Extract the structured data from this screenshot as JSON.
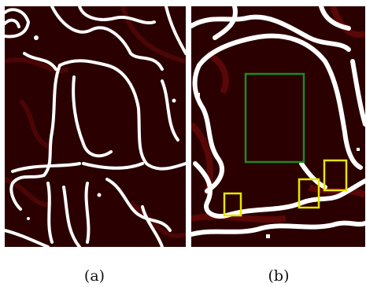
{
  "figure": {
    "colors": {
      "background_dark": "#2a0000",
      "background_red": "#6b0a0a",
      "contour": "#ffffff",
      "box_green": "#1f8a1f",
      "box_yellow": "#e6e600",
      "page": "#ffffff"
    },
    "panels": [
      {
        "id": "a",
        "caption": "(a)"
      },
      {
        "id": "b",
        "caption": "(b)"
      }
    ]
  }
}
